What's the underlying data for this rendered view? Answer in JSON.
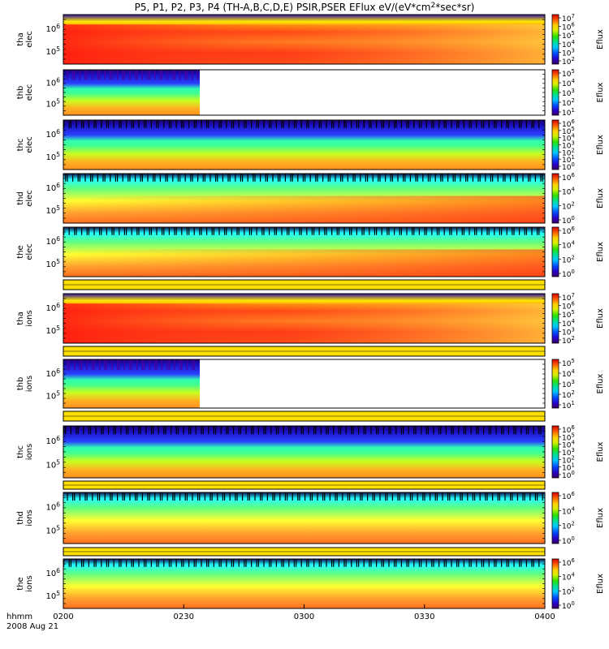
{
  "title": "P5, P1, P2, P3, P4 (TH-A,B,C,D,E) PSIR,PSER EFlux eV/(eV*cm^2*sec*sr)",
  "colorbar_label": "Eflux",
  "x_axis": {
    "unit_label": "hhmm",
    "date_label": "2008 Aug 21",
    "ticks": [
      "0200",
      "0230",
      "0300",
      "0330",
      "0400"
    ]
  },
  "chart_data": [
    {
      "type": "heatmap",
      "panel": "tha-elec",
      "ylabel": [
        "tha",
        "elec"
      ],
      "yticks": [
        "10^6",
        "10^5"
      ],
      "cbar": [
        "10^7",
        "10^6",
        "10^5",
        "10^4",
        "10^3",
        "10^2"
      ],
      "data_until": "0400"
    },
    {
      "type": "heatmap",
      "panel": "thb-elec",
      "ylabel": [
        "thb",
        "elec"
      ],
      "yticks": [
        "10^6",
        "10^5"
      ],
      "cbar": [
        "10^5",
        "10^4",
        "10^3",
        "10^2",
        "10^1"
      ],
      "data_until": "0234"
    },
    {
      "type": "heatmap",
      "panel": "thc-elec",
      "ylabel": [
        "thc",
        "elec"
      ],
      "yticks": [
        "10^6",
        "10^5"
      ],
      "cbar": [
        "10^6",
        "10^5",
        "10^4",
        "10^3",
        "10^2",
        "10^1",
        "10^0"
      ],
      "data_until": "0400"
    },
    {
      "type": "heatmap",
      "panel": "thd-elec",
      "ylabel": [
        "thd",
        "elec"
      ],
      "yticks": [
        "10^6",
        "10^5"
      ],
      "cbar": [
        "10^6",
        "10^4",
        "10^2",
        "10^0"
      ],
      "data_until": "0400"
    },
    {
      "type": "heatmap",
      "panel": "the-elec",
      "ylabel": [
        "the",
        "elec"
      ],
      "yticks": [
        "10^6",
        "10^5"
      ],
      "cbar": [
        "10^6",
        "10^4",
        "10^2",
        "10^0"
      ],
      "data_until": "0400"
    },
    {
      "type": "heatmap",
      "panel": "tha-ions",
      "ylabel": [
        "tha",
        "ions"
      ],
      "yticks": [
        "10^6",
        "10^5"
      ],
      "cbar": [
        "10^7",
        "10^6",
        "10^5",
        "10^4",
        "10^3",
        "10^2"
      ],
      "data_until": "0400"
    },
    {
      "type": "heatmap",
      "panel": "thb-ions",
      "ylabel": [
        "thb",
        "ions"
      ],
      "yticks": [
        "10^6",
        "10^5"
      ],
      "cbar": [
        "10^5",
        "10^4",
        "10^3",
        "10^2",
        "10^1"
      ],
      "data_until": "0234"
    },
    {
      "type": "heatmap",
      "panel": "thc-ions",
      "ylabel": [
        "thc",
        "ions"
      ],
      "yticks": [
        "10^6",
        "10^5"
      ],
      "cbar": [
        "10^6",
        "10^5",
        "10^4",
        "10^3",
        "10^2",
        "10^1",
        "10^0"
      ],
      "data_until": "0400"
    },
    {
      "type": "heatmap",
      "panel": "thd-ions",
      "ylabel": [
        "thd",
        "ions"
      ],
      "yticks": [
        "10^6",
        "10^5"
      ],
      "cbar": [
        "10^6",
        "10^4",
        "10^2",
        "10^0"
      ],
      "data_until": "0400"
    },
    {
      "type": "heatmap",
      "panel": "the-ions",
      "ylabel": [
        "the",
        "ions"
      ],
      "yticks": [
        "10^6",
        "10^5"
      ],
      "cbar": [
        "10^6",
        "10^4",
        "10^2",
        "10^0"
      ],
      "data_until": "0400"
    }
  ]
}
